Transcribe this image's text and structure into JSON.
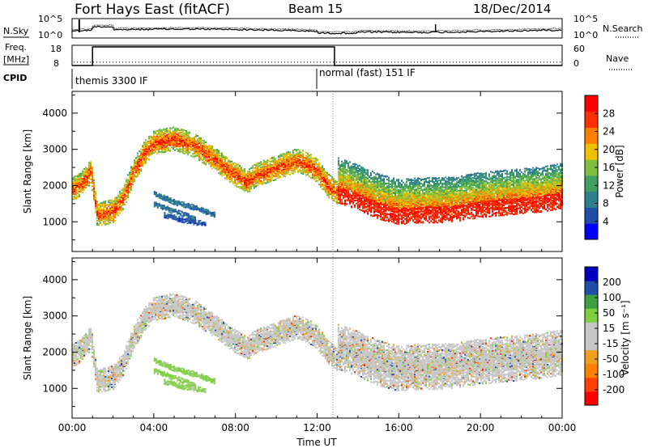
{
  "header": {
    "station": "Fort Hays East (fitACF)",
    "beam": "Beam 15",
    "date": "18/Dec/2014"
  },
  "noise_panel": {
    "left_label": "N.Sky",
    "right_label": "N.Search",
    "left_ticks": [
      "10^5",
      "10^0"
    ],
    "right_ticks": [
      "10^5",
      "10^0"
    ]
  },
  "freq_panel": {
    "left_label_1": "Freq.",
    "left_label_2": "[MHz]",
    "right_label": "Nave",
    "left_ticks": [
      "18",
      "8"
    ],
    "right_ticks": [
      "60",
      "0"
    ]
  },
  "cpid": {
    "label": "CPID",
    "modes": [
      {
        "name": "themis 3300 IF",
        "start_hour": 0
      },
      {
        "name": "normal (fast) 151 IF",
        "start_hour": 12.85
      }
    ]
  },
  "x_axis": {
    "label": "Time UT",
    "ticks": [
      "00:00",
      "04:00",
      "08:00",
      "12:00",
      "16:00",
      "20:00",
      "00:00"
    ],
    "range_hours": [
      0,
      24
    ]
  },
  "power_panel": {
    "ylabel": "Slant Range [km]",
    "yticks": [
      "1000",
      "2000",
      "3000",
      "4000"
    ],
    "colorbar_label": "Power [dB]",
    "colorbar_ticks": [
      "4",
      "8",
      "12",
      "16",
      "20",
      "24",
      "28"
    ]
  },
  "velocity_panel": {
    "ylabel": "Slant Range [km]",
    "yticks": [
      "1000",
      "2000",
      "3000",
      "4000"
    ],
    "colorbar_label": "Velocity [m s⁻¹]",
    "colorbar_ticks": [
      "200",
      "100",
      "50",
      "15",
      "-15",
      "-50",
      "-100",
      "-200"
    ]
  },
  "chart_data": {
    "type": "heatmap",
    "title": "Fort Hays East (fitACF)  Beam 15  18/Dec/2014",
    "xlabel": "Time UT",
    "ylabel": "Slant Range [km]",
    "xlim_hours": [
      0,
      24
    ],
    "ylim_km": [
      180,
      4600
    ],
    "frequency_mhz": [
      {
        "start_hour": 0,
        "end_hour": 1.0,
        "value": 8
      },
      {
        "start_hour": 1.0,
        "end_hour": 12.85,
        "value": 18
      },
      {
        "start_hour": 12.85,
        "end_hour": 24,
        "value": 8
      }
    ],
    "nave_level": 10,
    "echo_features": [
      {
        "name": "main band",
        "points": [
          [
            0,
            1900
          ],
          [
            0.5,
            2100
          ],
          [
            0.9,
            2400
          ],
          [
            1.2,
            1200
          ],
          [
            2,
            1300
          ],
          [
            2.5,
            1700
          ],
          [
            3,
            2400
          ],
          [
            3.5,
            2900
          ],
          [
            4,
            3200
          ],
          [
            5,
            3300
          ],
          [
            6,
            3100
          ],
          [
            7,
            2700
          ],
          [
            8,
            2300
          ],
          [
            8.5,
            2100
          ],
          [
            9,
            2300
          ],
          [
            10,
            2500
          ],
          [
            11,
            2700
          ],
          [
            11.5,
            2600
          ],
          [
            12,
            2400
          ],
          [
            12.5,
            2000
          ],
          [
            13,
            1800
          ],
          [
            14,
            1600
          ],
          [
            15,
            1350
          ],
          [
            16,
            1200
          ],
          [
            17,
            1250
          ],
          [
            18,
            1250
          ],
          [
            19,
            1300
          ],
          [
            20,
            1400
          ],
          [
            21,
            1450
          ],
          [
            22,
            1500
          ],
          [
            23,
            1550
          ],
          [
            24,
            1650
          ]
        ],
        "power_db": 20,
        "velocity": "-15 to 15"
      },
      {
        "name": "near range band 1",
        "points": [
          [
            4,
            1800
          ],
          [
            5,
            1550
          ],
          [
            6,
            1400
          ],
          [
            7,
            1200
          ]
        ],
        "power_db": 8,
        "velocity": "15 to 50"
      },
      {
        "name": "near range band 2",
        "points": [
          [
            4,
            1500
          ],
          [
            5,
            1300
          ],
          [
            6,
            1100
          ]
        ],
        "power_db": 8,
        "velocity": "15 to 50"
      },
      {
        "name": "near range band 3",
        "points": [
          [
            4.5,
            1200
          ],
          [
            5.5,
            1050
          ],
          [
            6.5,
            950
          ]
        ],
        "power_db": 6,
        "velocity": "15 to 50"
      }
    ]
  }
}
